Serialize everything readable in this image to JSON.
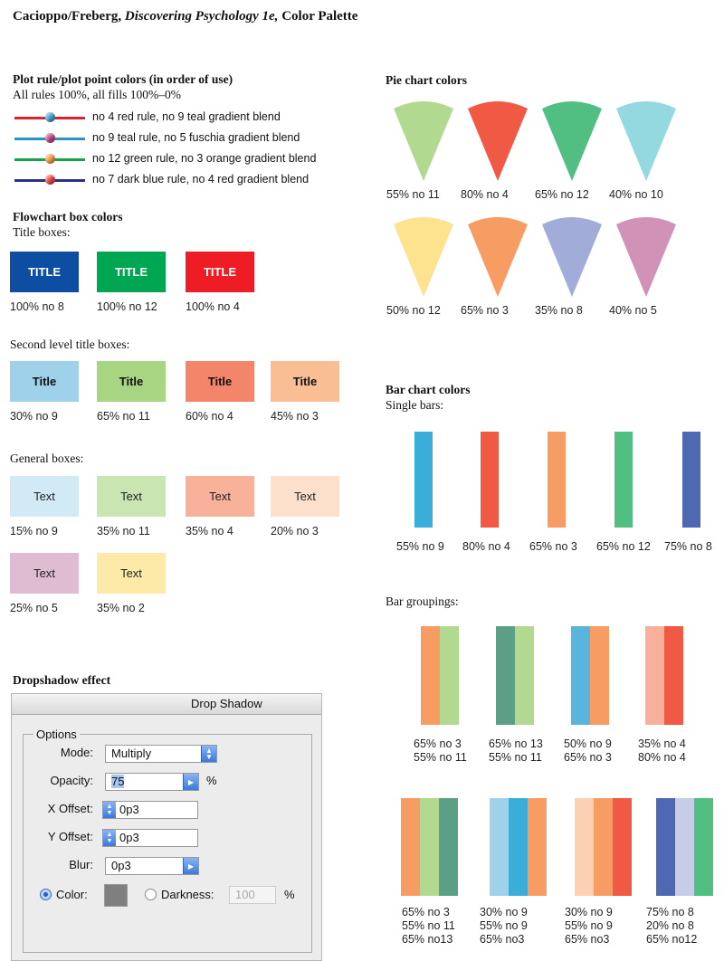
{
  "doc": {
    "title_authors": "Cacioppo/Freberg,",
    "title_book": "Discovering Psychology 1e,",
    "title_rest": "Color Palette"
  },
  "plot": {
    "heading": "Plot rule/plot point colors (in order of use)",
    "subheading": "All rules 100%, all fills 100%–0%",
    "rules": [
      {
        "label": "no 4 red rule, no 9 teal gradient blend",
        "line": "#d7252b",
        "dot": "#3aa0d2"
      },
      {
        "label": "no 9 teal rule, no 5 fuschia gradient blend",
        "line": "#2a93c6",
        "dot": "#c0407f"
      },
      {
        "label": "no 12 green rule, no 3 orange gradient blend",
        "line": "#15a24a",
        "dot": "#f59a3a"
      },
      {
        "label": "no 7 dark blue rule, no 4 red gradient blend",
        "line": "#2b2f87",
        "dot": "#e8443a"
      }
    ]
  },
  "flow": {
    "heading": "Flowchart box colors",
    "title_boxes_label": "Title boxes:",
    "title_boxes": [
      {
        "text": "TITLE",
        "caption": "100% no 8",
        "color": "#0d4ea3"
      },
      {
        "text": "TITLE",
        "caption": "100% no 12",
        "color": "#00a651"
      },
      {
        "text": "TITLE",
        "caption": "100% no 4",
        "color": "#ee1c25"
      }
    ],
    "second_label": "Second level title boxes:",
    "second_boxes": [
      {
        "text": "Title",
        "caption": "30% no 9",
        "color": "#9fd2ea"
      },
      {
        "text": "Title",
        "caption": "65% no 11",
        "color": "#a8d582"
      },
      {
        "text": "Title",
        "caption": "60% no 4",
        "color": "#f3866a"
      },
      {
        "text": "Title",
        "caption": "45% no 3",
        "color": "#f9be93"
      }
    ],
    "general_label": "General boxes:",
    "general_boxes": [
      {
        "text": "Text",
        "caption": "15% no 9",
        "color": "#d2eaf6"
      },
      {
        "text": "Text",
        "caption": "35% no 11",
        "color": "#c8e5b2"
      },
      {
        "text": "Text",
        "caption": "35% no 4",
        "color": "#f8b29b"
      },
      {
        "text": "Text",
        "caption": "20% no 3",
        "color": "#fde0cc"
      },
      {
        "text": "Text",
        "caption": "25% no 5",
        "color": "#e0bcd3"
      },
      {
        "text": "Text",
        "caption": "35% no 2",
        "color": "#fdeaa8"
      }
    ]
  },
  "pie": {
    "heading": "Pie chart colors",
    "swatches": [
      {
        "caption": "55% no 11",
        "color": "#b1d98f"
      },
      {
        "caption": "80% no 4",
        "color": "#f05a45"
      },
      {
        "caption": "65% no 12",
        "color": "#52bf82"
      },
      {
        "caption": "40% no 10",
        "color": "#94d8e0"
      },
      {
        "caption": "50% no 12",
        "color": "#fde28f"
      },
      {
        "caption": "65% no 3",
        "color": "#f79c63"
      },
      {
        "caption": "35% no 8",
        "color": "#a1acd9"
      },
      {
        "caption": "40% no 5",
        "color": "#d292b6"
      }
    ]
  },
  "bars": {
    "heading": "Bar chart colors",
    "single_label": "Single bars:",
    "single": [
      {
        "caption": "55% no 9",
        "color": "#3aaed8"
      },
      {
        "caption": "80% no 4",
        "color": "#f05a45"
      },
      {
        "caption": "65% no 3",
        "color": "#f79c63"
      },
      {
        "caption": "65% no 12",
        "color": "#52bf82"
      },
      {
        "caption": "75% no 8",
        "color": "#4f68b3"
      }
    ],
    "groupings_label": "Bar groupings:",
    "pairs": [
      {
        "colors": [
          "#f79c63",
          "#b1d98f"
        ],
        "captions": [
          "65% no 3",
          "55% no 11"
        ]
      },
      {
        "colors": [
          "#5a9f86",
          "#b1d98f"
        ],
        "captions": [
          "65% no 13",
          "55% no 11"
        ]
      },
      {
        "colors": [
          "#5ab5dc",
          "#f79c63"
        ],
        "captions": [
          "50% no 9",
          "65% no 3"
        ]
      },
      {
        "colors": [
          "#f7b19b",
          "#f05a45"
        ],
        "captions": [
          "35% no 4",
          "80% no 4"
        ]
      }
    ],
    "triples": [
      {
        "colors": [
          "#f79c63",
          "#b1d98f",
          "#5a9f86"
        ],
        "captions": [
          "65% no 3",
          "55% no 11",
          "65% no13"
        ]
      },
      {
        "colors": [
          "#9fd2ea",
          "#3aaed8",
          "#f79c63"
        ],
        "captions": [
          "30% no 9",
          "55% no 9",
          "65% no3"
        ]
      },
      {
        "colors": [
          "#fcd0b3",
          "#f79c63",
          "#f05a45"
        ],
        "captions": [
          "30% no 9",
          "55% no 9",
          "65% no3"
        ]
      },
      {
        "colors": [
          "#4f68b3",
          "#c7cde9",
          "#52bf82"
        ],
        "captions": [
          "75% no 8",
          "20% no 8",
          "65% no12"
        ]
      }
    ]
  },
  "dropshadow": {
    "heading": "Dropshadow effect",
    "window_title": "Drop Shadow",
    "options_legend": "Options",
    "mode_label": "Mode:",
    "mode_value": "Multiply",
    "opacity_label": "Opacity:",
    "opacity_value": "75",
    "opacity_unit": "%",
    "xoffset_label": "X Offset:",
    "xoffset_value": "0p3",
    "yoffset_label": "Y Offset:",
    "yoffset_value": "0p3",
    "blur_label": "Blur:",
    "blur_value": "0p3",
    "color_label": "Color:",
    "darkness_label": "Darkness:",
    "darkness_value": "100",
    "darkness_unit": "%",
    "swatch_color": "#7f7f7f"
  }
}
